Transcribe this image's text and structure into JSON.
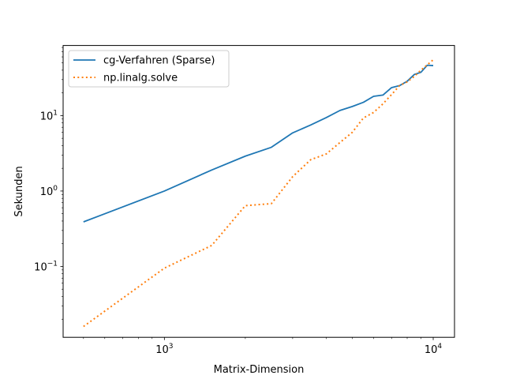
{
  "chart_data": {
    "type": "line",
    "xlabel": "Matrix-Dimension",
    "ylabel": "Sekunden",
    "xscale": "log",
    "yscale": "log",
    "xlim": [
      420,
      12000
    ],
    "ylim": [
      0.0115,
      85
    ],
    "grid": false,
    "legend_position": "top-left",
    "x_ticks": [
      {
        "value": 1000,
        "base": "10",
        "exp": "3"
      },
      {
        "value": 10000,
        "base": "10",
        "exp": "4"
      }
    ],
    "y_ticks": [
      {
        "value": 0.1,
        "base": "10",
        "exp": "−1"
      },
      {
        "value": 1,
        "base": "10",
        "exp": "0"
      },
      {
        "value": 10,
        "base": "10",
        "exp": "1"
      }
    ],
    "series": [
      {
        "name": "cg-Verfahren (Sparse)",
        "color": "#1f77b4",
        "style": "solid",
        "x": [
          500,
          1000,
          1500,
          2000,
          2500,
          3000,
          3500,
          4000,
          4500,
          5000,
          5500,
          6000,
          6500,
          7000,
          7500,
          8000,
          8500,
          9000,
          9500,
          10000
        ],
        "y": [
          0.39,
          1.0,
          1.9,
          2.9,
          3.8,
          5.9,
          7.5,
          9.4,
          11.7,
          13.2,
          15.0,
          18.0,
          18.7,
          23.5,
          25.0,
          28.5,
          35.0,
          37.5,
          46.5,
          46.0
        ]
      },
      {
        "name": "np.linalg.solve",
        "color": "#ff7f0e",
        "style": "dotted",
        "x": [
          500,
          1000,
          1500,
          2000,
          2500,
          3000,
          3500,
          4000,
          4500,
          5000,
          5500,
          6000,
          6500,
          7000,
          7500,
          8000,
          8500,
          9000,
          9500,
          10000
        ],
        "y": [
          0.016,
          0.095,
          0.19,
          0.64,
          0.68,
          1.55,
          2.6,
          3.1,
          4.4,
          6.0,
          9.3,
          11.0,
          14.3,
          19.0,
          25.0,
          28.0,
          33.0,
          40.0,
          47.0,
          55.0
        ]
      }
    ]
  }
}
